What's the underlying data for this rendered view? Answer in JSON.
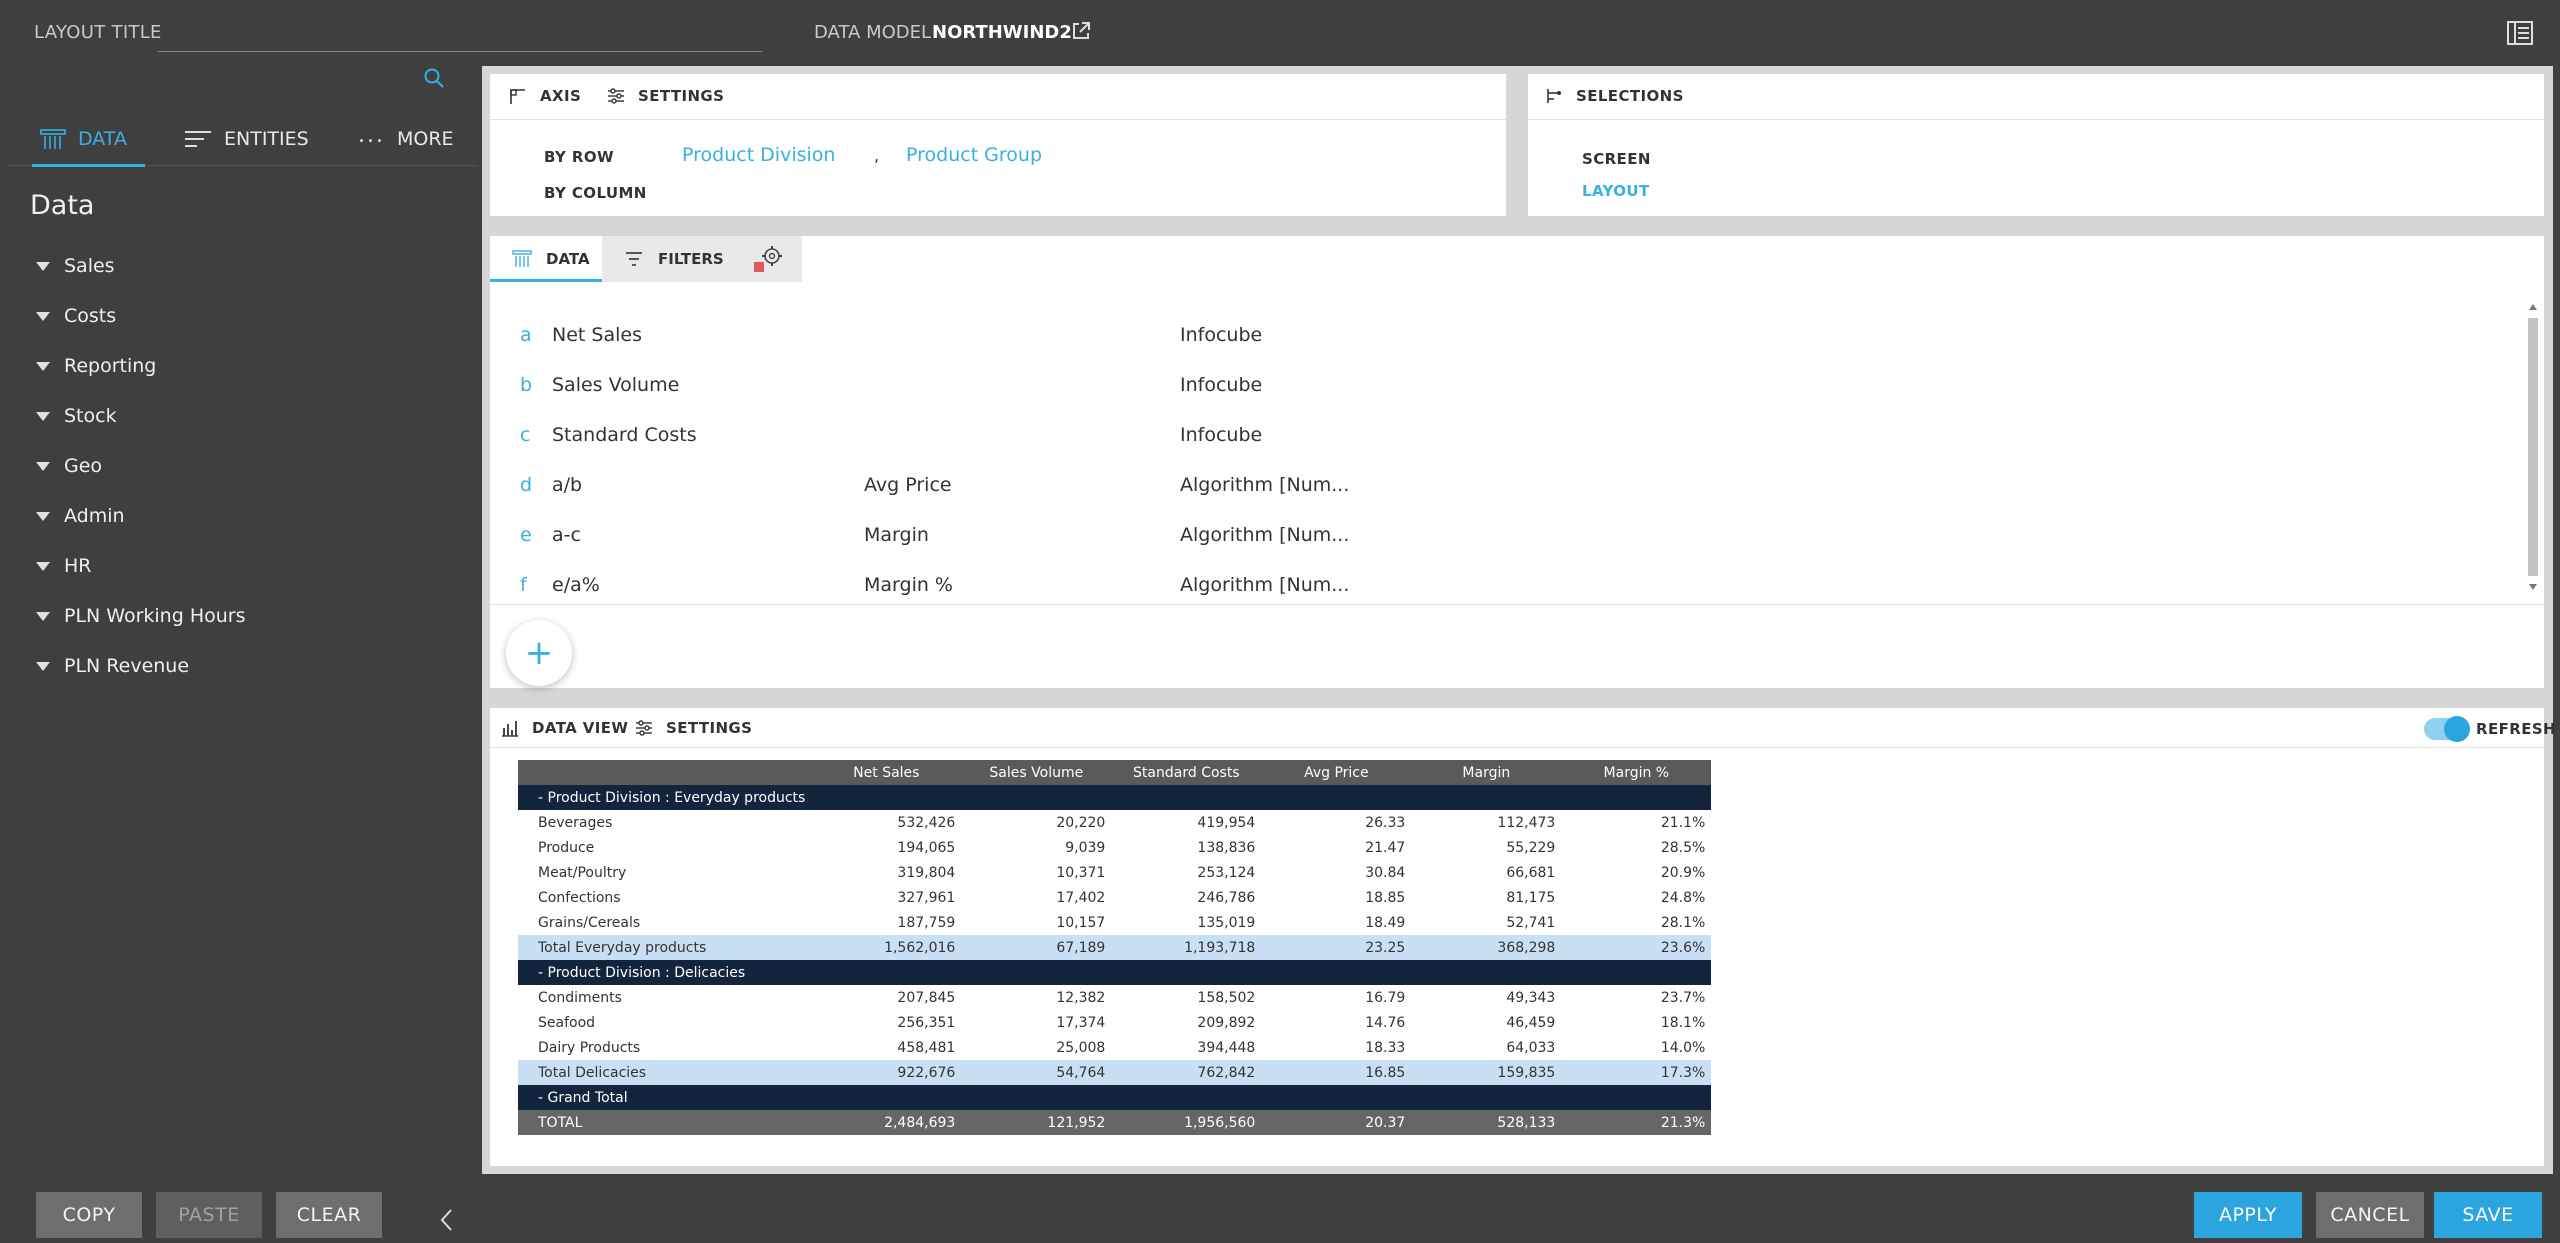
{
  "header": {
    "layout_title_label": "LAYOUT TITLE",
    "layout_title_value": "",
    "data_model_label": "DATA MODEL",
    "data_model_name": "NORTHWIND2"
  },
  "sidebar": {
    "tabs": [
      {
        "label": "DATA",
        "icon": "data-icon",
        "active": true
      },
      {
        "label": "ENTITIES",
        "icon": "entities-icon",
        "active": false
      },
      {
        "label": "MORE",
        "icon": "more-icon",
        "active": false
      }
    ],
    "heading": "Data",
    "items": [
      "Sales",
      "Costs",
      "Reporting",
      "Stock",
      "Geo",
      "Admin",
      "HR",
      "PLN Working Hours",
      "PLN Revenue"
    ]
  },
  "axis_panel": {
    "tab_axis": "AXIS",
    "tab_settings": "SETTINGS",
    "by_row_label": "BY ROW",
    "by_column_label": "BY COLUMN",
    "row_fields": [
      "Product Division",
      "Product Group"
    ],
    "separator": ","
  },
  "selections_panel": {
    "title": "SELECTIONS",
    "screen": "SCREEN",
    "layout": "LAYOUT"
  },
  "data_panel": {
    "tab_data": "DATA",
    "tab_filters": "FILTERS",
    "add_label": "+",
    "measures": [
      {
        "letter": "a",
        "formula": "Net Sales",
        "name": "",
        "source": "Infocube"
      },
      {
        "letter": "b",
        "formula": "Sales Volume",
        "name": "",
        "source": "Infocube"
      },
      {
        "letter": "c",
        "formula": "Standard Costs",
        "name": "",
        "source": "Infocube"
      },
      {
        "letter": "d",
        "formula": "a/b",
        "name": "Avg Price",
        "source": "Algorithm [Num..."
      },
      {
        "letter": "e",
        "formula": "a-c",
        "name": "Margin",
        "source": "Algorithm [Num..."
      },
      {
        "letter": "f",
        "formula": "e/a%",
        "name": "Margin %",
        "source": "Algorithm [Num..."
      }
    ]
  },
  "data_view": {
    "title": "DATA VIEW",
    "settings": "SETTINGS",
    "refresh": "REFRESH",
    "refresh_on": true,
    "columns": [
      "Net Sales",
      "Sales Volume",
      "Standard Costs",
      "Avg Price",
      "Margin",
      "Margin %"
    ],
    "groups": [
      {
        "label": "-  Product Division : Everyday products",
        "rows": [
          {
            "name": "Beverages",
            "values": [
              "532,426",
              "20,220",
              "419,954",
              "26.33",
              "112,473",
              "21.1%"
            ]
          },
          {
            "name": "Produce",
            "values": [
              "194,065",
              "9,039",
              "138,836",
              "21.47",
              "55,229",
              "28.5%"
            ]
          },
          {
            "name": "Meat/Poultry",
            "values": [
              "319,804",
              "10,371",
              "253,124",
              "30.84",
              "66,681",
              "20.9%"
            ]
          },
          {
            "name": "Confections",
            "values": [
              "327,961",
              "17,402",
              "246,786",
              "18.85",
              "81,175",
              "24.8%"
            ]
          },
          {
            "name": "Grains/Cereals",
            "values": [
              "187,759",
              "10,157",
              "135,019",
              "18.49",
              "52,741",
              "28.1%"
            ]
          }
        ],
        "total": {
          "name": "Total Everyday products",
          "values": [
            "1,562,016",
            "67,189",
            "1,193,718",
            "23.25",
            "368,298",
            "23.6%"
          ]
        }
      },
      {
        "label": "-  Product Division : Delicacies",
        "rows": [
          {
            "name": "Condiments",
            "values": [
              "207,845",
              "12,382",
              "158,502",
              "16.79",
              "49,343",
              "23.7%"
            ]
          },
          {
            "name": "Seafood",
            "values": [
              "256,351",
              "17,374",
              "209,892",
              "14.76",
              "46,459",
              "18.1%"
            ]
          },
          {
            "name": "Dairy Products",
            "values": [
              "458,481",
              "25,008",
              "394,448",
              "18.33",
              "64,033",
              "14.0%"
            ]
          }
        ],
        "total": {
          "name": "Total Delicacies",
          "values": [
            "922,676",
            "54,764",
            "762,842",
            "16.85",
            "159,835",
            "17.3%"
          ]
        }
      }
    ],
    "grand_label": "-  Grand Total",
    "grand_total": {
      "name": "TOTAL",
      "values": [
        "2,484,693",
        "121,952",
        "1,956,560",
        "20.37",
        "528,133",
        "21.3%"
      ]
    }
  },
  "footer": {
    "copy": "COPY",
    "paste": "PASTE",
    "clear": "CLEAR",
    "apply": "APPLY",
    "cancel": "CANCEL",
    "save": "SAVE"
  },
  "colors": {
    "accent": "#3ab0e2",
    "group_row": "#13253e",
    "total_row": "#c9e0f4",
    "header_row": "#5a5a5a"
  }
}
